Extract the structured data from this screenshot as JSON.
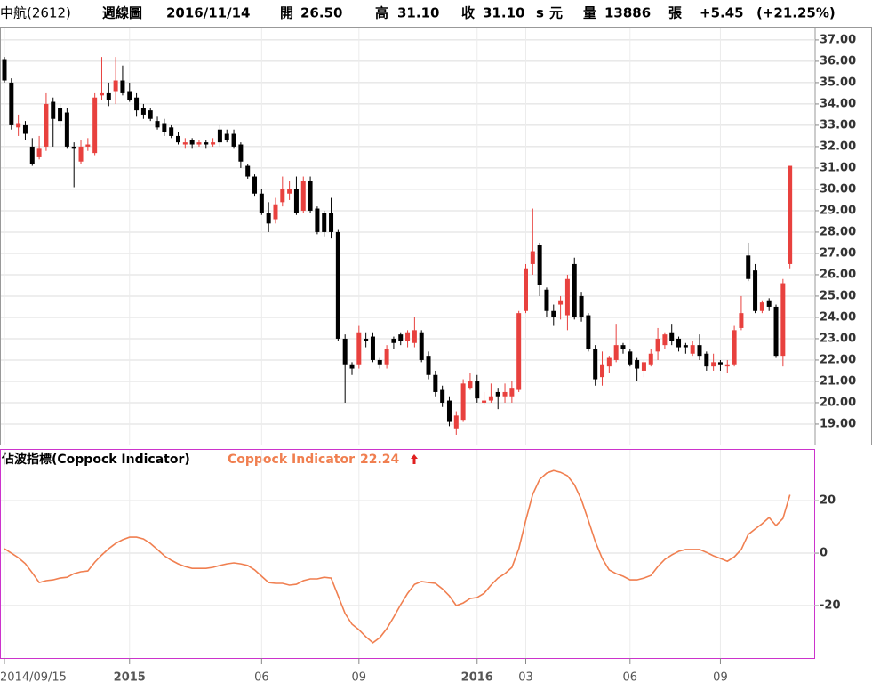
{
  "header": {
    "name": "中航(2612)",
    "period": "週線圖",
    "date": "2016/11/14",
    "open_label": "開",
    "open": "26.50",
    "high_label": "高",
    "high": "31.10",
    "close_label": "收",
    "close": "31.10",
    "close_unit_s": "s",
    "close_unit": "元",
    "volume_label": "量",
    "volume": "13886",
    "volume_unit": "張",
    "change": "+5.45",
    "change_pct": "(+21.25%)"
  },
  "chart_data": [
    {
      "type": "candlestick",
      "categories": [
        "2014/09/15",
        null,
        null,
        null,
        null,
        null,
        null,
        null,
        null,
        null,
        null,
        null,
        null,
        null,
        null,
        null,
        null,
        null,
        "2015",
        null,
        null,
        null,
        null,
        null,
        null,
        null,
        null,
        null,
        null,
        null,
        null,
        null,
        null,
        null,
        null,
        null,
        null,
        "06",
        null,
        null,
        null,
        null,
        null,
        null,
        null,
        null,
        null,
        null,
        null,
        null,
        null,
        "09",
        null,
        null,
        null,
        null,
        null,
        null,
        null,
        null,
        null,
        null,
        null,
        null,
        null,
        null,
        null,
        null,
        "2016",
        null,
        null,
        null,
        null,
        null,
        null,
        "03",
        null,
        null,
        null,
        null,
        null,
        null,
        null,
        null,
        null,
        null,
        null,
        null,
        null,
        null,
        "06",
        null,
        null,
        null,
        null,
        null,
        null,
        null,
        null,
        null,
        null,
        null,
        null,
        "09",
        null,
        null,
        null,
        null,
        null,
        null,
        null,
        null,
        null,
        null
      ],
      "open": [
        36.1,
        35.0,
        32.9,
        33.0,
        32.0,
        31.5,
        32.0,
        34.1,
        33.8,
        33.6,
        32.0,
        31.3,
        32.0,
        31.7,
        34.4,
        34.5,
        34.6,
        35.1,
        34.6,
        34.3,
        33.8,
        33.7,
        33.2,
        33.1,
        32.9,
        32.5,
        32.1,
        32.3,
        32.1,
        32.2,
        32.1,
        32.8,
        32.6,
        32.6,
        32.1,
        31.1,
        30.6,
        29.8,
        28.9,
        28.6,
        29.4,
        29.8,
        30.0,
        29.0,
        30.4,
        29.1,
        28.9,
        28.9,
        28.0,
        23.0,
        21.8,
        21.8,
        23.0,
        23.1,
        22.0,
        21.8,
        23.0,
        23.2,
        22.9,
        22.8,
        23.3,
        22.2,
        21.3,
        20.6,
        20.1,
        18.8,
        19.2,
        20.7,
        21.0,
        20.0,
        20.1,
        20.5,
        20.3,
        20.3,
        20.6,
        24.3,
        26.5,
        27.4,
        25.3,
        24.3,
        24.6,
        24.1,
        26.5,
        25.0,
        24.1,
        22.5,
        21.2,
        21.7,
        22.0,
        22.7,
        22.4,
        22.0,
        21.5,
        21.8,
        22.4,
        22.7,
        23.3,
        23.0,
        22.7,
        22.3,
        22.7,
        22.3,
        21.7,
        21.9,
        21.7,
        21.8,
        23.5,
        26.9,
        26.2,
        24.3,
        24.8,
        24.5,
        22.2,
        26.5
      ],
      "high": [
        36.2,
        35.2,
        33.5,
        33.2,
        32.4,
        32.5,
        34.5,
        34.3,
        34.0,
        33.8,
        32.2,
        32.3,
        32.4,
        34.5,
        36.2,
        35.0,
        36.2,
        35.8,
        35.0,
        34.5,
        34.0,
        33.8,
        33.4,
        33.3,
        33.0,
        32.7,
        32.4,
        32.4,
        32.3,
        32.3,
        32.4,
        33.0,
        32.8,
        32.8,
        32.2,
        31.2,
        30.7,
        30.0,
        29.4,
        29.6,
        30.6,
        30.4,
        30.6,
        30.6,
        30.6,
        29.2,
        29.0,
        29.6,
        28.1,
        23.2,
        21.9,
        23.6,
        23.3,
        23.3,
        22.1,
        22.7,
        23.1,
        23.3,
        23.4,
        24.0,
        23.4,
        22.4,
        21.5,
        20.8,
        20.3,
        19.6,
        21.1,
        21.4,
        21.3,
        20.5,
        20.9,
        20.7,
        20.9,
        21.0,
        24.3,
        26.5,
        29.1,
        27.5,
        25.4,
        24.6,
        25.0,
        26.0,
        26.8,
        25.2,
        24.2,
        22.7,
        22.4,
        22.2,
        23.7,
        22.8,
        22.5,
        22.1,
        22.0,
        22.5,
        23.5,
        23.3,
        23.7,
        23.1,
        22.8,
        22.9,
        23.2,
        22.4,
        22.3,
        22.0,
        22.0,
        23.6,
        25.0,
        27.5,
        26.5,
        24.8,
        24.9,
        24.6,
        25.8,
        31.1
      ],
      "low": [
        35.0,
        32.8,
        32.5,
        32.3,
        31.1,
        31.4,
        31.8,
        32.0,
        32.9,
        31.9,
        30.1,
        31.2,
        31.8,
        31.6,
        34.2,
        33.9,
        34.0,
        34.4,
        34.1,
        33.4,
        33.3,
        33.2,
        32.8,
        32.5,
        32.4,
        32.1,
        31.9,
        31.9,
        32.0,
        31.9,
        32.0,
        32.0,
        32.2,
        31.9,
        31.0,
        30.5,
        29.7,
        28.8,
        28.0,
        28.4,
        29.2,
        29.5,
        28.8,
        28.9,
        28.9,
        27.9,
        27.8,
        27.7,
        22.9,
        20.0,
        21.3,
        21.6,
        22.6,
        21.9,
        21.6,
        21.6,
        22.5,
        22.7,
        22.6,
        22.6,
        21.9,
        21.1,
        20.3,
        19.8,
        18.9,
        18.5,
        19.1,
        20.6,
        20.0,
        19.9,
        20.0,
        19.7,
        20.0,
        20.0,
        20.5,
        24.2,
        26.0,
        25.0,
        24.0,
        23.6,
        23.9,
        23.4,
        23.9,
        23.8,
        22.4,
        20.8,
        20.8,
        21.4,
        21.9,
        22.3,
        21.7,
        21.0,
        21.2,
        21.7,
        22.0,
        22.5,
        22.7,
        22.4,
        22.3,
        22.2,
        22.0,
        21.5,
        21.5,
        21.5,
        21.4,
        21.7,
        23.4,
        25.7,
        24.2,
        24.2,
        24.3,
        22.1,
        21.7,
        26.3
      ],
      "close": [
        35.1,
        33.0,
        33.1,
        32.6,
        31.2,
        31.9,
        34.0,
        33.3,
        33.2,
        32.0,
        31.9,
        32.0,
        32.1,
        34.3,
        34.5,
        34.2,
        35.1,
        34.5,
        34.2,
        33.7,
        33.5,
        33.3,
        32.9,
        32.7,
        32.5,
        32.2,
        32.2,
        32.1,
        32.2,
        32.1,
        32.2,
        32.2,
        32.3,
        32.0,
        31.3,
        30.6,
        29.8,
        28.9,
        28.4,
        29.3,
        30.0,
        30.0,
        28.9,
        30.4,
        29.0,
        28.0,
        28.0,
        28.0,
        23.0,
        21.8,
        21.6,
        23.3,
        22.9,
        22.0,
        21.8,
        22.5,
        22.8,
        22.9,
        23.3,
        23.4,
        22.0,
        21.3,
        20.5,
        20.0,
        19.1,
        19.4,
        20.9,
        21.0,
        20.2,
        20.1,
        20.3,
        20.3,
        20.5,
        20.7,
        24.2,
        26.3,
        27.1,
        25.5,
        24.3,
        24.0,
        24.8,
        25.8,
        24.0,
        24.0,
        22.5,
        21.1,
        21.8,
        22.1,
        22.7,
        22.5,
        21.8,
        21.6,
        21.9,
        22.3,
        23.0,
        23.2,
        22.9,
        22.6,
        22.6,
        22.7,
        22.2,
        21.7,
        21.9,
        21.8,
        21.8,
        23.4,
        24.2,
        25.8,
        24.3,
        24.7,
        24.5,
        22.2,
        25.6,
        31.1
      ],
      "up_color": "#e8413e",
      "down_color": "#000000",
      "ylim": [
        18.04,
        37.58
      ],
      "yticks": [
        {
          "value": 19,
          "label": "19.00"
        },
        {
          "value": 20,
          "label": "20.00"
        },
        {
          "value": 21,
          "label": "21.00"
        },
        {
          "value": 22,
          "label": "22.00"
        },
        {
          "value": 23,
          "label": "23.00"
        },
        {
          "value": 24,
          "label": "24.00"
        },
        {
          "value": 25,
          "label": "25.00"
        },
        {
          "value": 26,
          "label": "26.00"
        },
        {
          "value": 27,
          "label": "27.00"
        },
        {
          "value": 28,
          "label": "28.00"
        },
        {
          "value": 29,
          "label": "29.00"
        },
        {
          "value": 30,
          "label": "30.00"
        },
        {
          "value": 31,
          "label": "31.00"
        },
        {
          "value": 32,
          "label": "32.00"
        },
        {
          "value": 33,
          "label": "33.00"
        },
        {
          "value": 34,
          "label": "34.00"
        },
        {
          "value": 35,
          "label": "35.00"
        },
        {
          "value": 36,
          "label": "36.00"
        },
        {
          "value": 37,
          "label": "37.00"
        }
      ],
      "grid": true
    },
    {
      "type": "line",
      "title": "佔波指標(Coppock Indicator)",
      "series": [
        {
          "name": "Coppock Indicator",
          "color": "#f07f50",
          "values": [
            1.7,
            0,
            -1.7,
            -4,
            -7.5,
            -11.2,
            -10.5,
            -10.2,
            -9.5,
            -9.2,
            -7.8,
            -7.1,
            -6.8,
            -3.4,
            -0.7,
            1.7,
            3.7,
            5.1,
            6.1,
            6.1,
            5.4,
            3.7,
            1.4,
            -1,
            -2.7,
            -4.1,
            -5.1,
            -5.8,
            -5.8,
            -5.8,
            -5.4,
            -4.7,
            -4.1,
            -3.7,
            -4.1,
            -4.7,
            -6.4,
            -8.8,
            -11.2,
            -11.5,
            -11.5,
            -12.2,
            -11.9,
            -10.5,
            -9.8,
            -9.8,
            -9.2,
            -9.5,
            -16.3,
            -23,
            -27.1,
            -29.2,
            -31.9,
            -34.2,
            -32.2,
            -28.8,
            -24.4,
            -19.7,
            -15.3,
            -11.9,
            -10.8,
            -11.2,
            -11.5,
            -13.6,
            -16.3,
            -20,
            -19,
            -17.3,
            -16.9,
            -15.3,
            -12.2,
            -9.5,
            -7.8,
            -5.4,
            1.7,
            12.5,
            22.4,
            28.1,
            30.5,
            31.5,
            30.8,
            29.5,
            26.1,
            20.3,
            12.5,
            4.4,
            -2,
            -6.4,
            -7.8,
            -8.8,
            -10.2,
            -10.2,
            -9.5,
            -8.5,
            -5.1,
            -2.4,
            -0.7,
            0.7,
            1.4,
            1.4,
            1.4,
            0.3,
            -1,
            -2,
            -3.1,
            -1.4,
            1.4,
            7.1,
            9.2,
            11.2,
            13.6,
            10.5,
            13.2,
            22.24
          ]
        }
      ],
      "ylim": [
        -40,
        39.7
      ],
      "yticks": [
        -20,
        0,
        20
      ],
      "grid": true
    }
  ]
}
